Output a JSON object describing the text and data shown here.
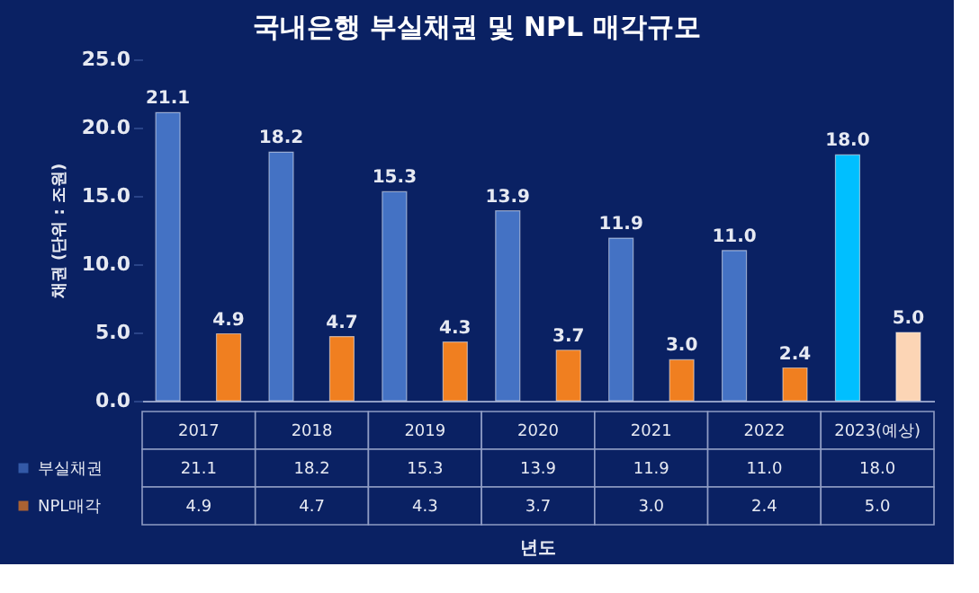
{
  "chart_data": {
    "type": "bar",
    "title": "국내은행 부실채권 및 NPL 매각규모",
    "annotations": [
      "년도"
    ],
    "ylabel": "채권 (단위 : 조원)",
    "categories": [
      "2017",
      "2018",
      "2019",
      "2020",
      "2021",
      "2022",
      "2023(예상)"
    ],
    "series": [
      {
        "name": "부실채권",
        "color": "#4472c4",
        "colors": [
          "#4472c4",
          "#4472c4",
          "#4472c4",
          "#4472c4",
          "#4472c4",
          "#4472c4",
          "#00bfff"
        ],
        "values": [
          21.1,
          18.2,
          15.3,
          13.9,
          11.9,
          11.0,
          18.0
        ],
        "value_labels": [
          "21.1",
          "18.2",
          "15.3",
          "13.9",
          "11.9",
          "11.0",
          "18.0"
        ]
      },
      {
        "name": "NPL매각",
        "color": "#f07f20",
        "colors": [
          "#f07f20",
          "#f07f20",
          "#f07f20",
          "#f07f20",
          "#f07f20",
          "#f07f20",
          "#fcd5b5"
        ],
        "values": [
          4.9,
          4.7,
          4.3,
          3.7,
          3.0,
          2.4,
          5.0
        ],
        "value_labels": [
          "4.9",
          "4.7",
          "4.3",
          "3.7",
          "3.0",
          "2.4",
          "5.0"
        ]
      }
    ],
    "ylim": [
      0,
      25
    ],
    "yticks": [
      {
        "value": 0,
        "label": "0.0"
      },
      {
        "value": 5,
        "label": "5.0"
      },
      {
        "value": 10,
        "label": "10.0"
      },
      {
        "value": 15,
        "label": "15.0"
      },
      {
        "value": 20,
        "label": "20.0"
      },
      {
        "value": 25,
        "label": "25.0"
      }
    ],
    "legend": "bottom",
    "grid": false
  }
}
